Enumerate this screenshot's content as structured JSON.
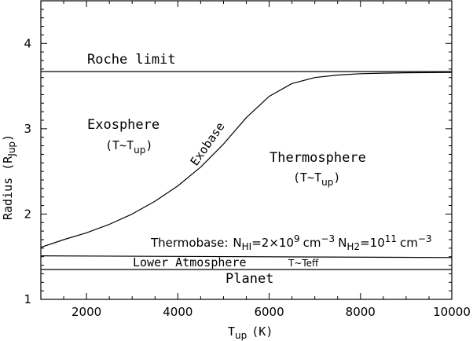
{
  "chart_data": {
    "type": "line",
    "xlabel": "T",
    "xlabel_sub": "up",
    "xlabel_unit": "(K)",
    "ylabel": "Radius (R",
    "ylabel_sub": "Jup",
    "ylabel_end": ")",
    "xlim": [
      1000,
      10000
    ],
    "ylim": [
      1,
      4.5
    ],
    "xticks": [
      2000,
      4000,
      6000,
      8000,
      10000
    ],
    "yticks": [
      1,
      2,
      3,
      4
    ],
    "series": [
      {
        "name": "Exobase",
        "x": [
          1000,
          1500,
          2000,
          2500,
          3000,
          3500,
          4000,
          4500,
          5000,
          5500,
          6000,
          6500,
          7000,
          7500,
          8000,
          8500,
          9000,
          9500,
          10000
        ],
        "y": [
          1.61,
          1.7,
          1.78,
          1.88,
          2.0,
          2.15,
          2.33,
          2.55,
          2.82,
          3.13,
          3.38,
          3.53,
          3.6,
          3.63,
          3.645,
          3.652,
          3.656,
          3.658,
          3.66
        ]
      },
      {
        "name": "Roche limit",
        "x": [
          1000,
          10000
        ],
        "y": [
          3.67,
          3.67
        ]
      },
      {
        "name": "Thermobase",
        "x": [
          1000,
          10000
        ],
        "y": [
          1.51,
          1.49
        ]
      },
      {
        "name": "Planet surface",
        "x": [
          1000,
          10000
        ],
        "y": [
          1.35,
          1.35
        ]
      }
    ],
    "annotations": {
      "roche": "Roche limit",
      "exosphere": "Exosphere",
      "exosphere_temp": "T~T",
      "exosphere_temp_sub": "up",
      "exosphere_paren_open": "(",
      "exosphere_paren_close": ")",
      "exobase": "Exobase",
      "thermosphere": "Thermosphere",
      "thermosphere_temp": "T~T",
      "thermosphere_temp_sub": "up",
      "thermosphere_paren_open": "(",
      "thermosphere_paren_close": ")",
      "thermobase_label": "Thermobase:",
      "nhi_n": "N",
      "nhi_sub": "HI",
      "nhi_eq": "=2×10",
      "nhi_exp": "9",
      "nhi_unit": "cm",
      "nhi_unit_exp": "−3",
      "nh2_n": "N",
      "nh2_sub": "H2",
      "nh2_eq": "=10",
      "nh2_exp": "11",
      "nh2_unit": "cm",
      "nh2_unit_exp": "−3",
      "lower_atm": "Lower Atmosphere",
      "lower_atm_temp": "T~Teff",
      "planet": "Planet"
    }
  }
}
